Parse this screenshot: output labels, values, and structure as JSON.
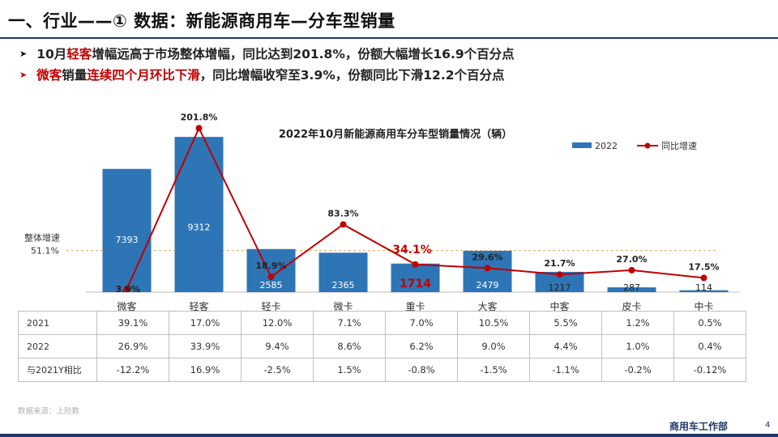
{
  "header": {
    "title": "一、行业——① 数据：新能源商用车—分车型销量"
  },
  "bullets": [
    {
      "s1": "10月",
      "s2": "轻客",
      "s3": "增幅远高于市场整体增幅，同比达到201.8%，份额大幅增长16.9个百分点"
    },
    {
      "s1": "微客",
      "s2": "销量",
      "s3": "连续四个月环比下滑",
      "s4": "，同比增幅收窄至3.9%，份额同比下滑12.2个百分点"
    }
  ],
  "colors": {
    "bar": "#2e75b6",
    "line": "#c00000",
    "ref": "#e0a860",
    "title_rule": "#1f3a66",
    "highlight": "#c00000"
  },
  "chart_data": {
    "type": "bar",
    "title": "2022年10月新能源商用车分车型销量情况（辆）",
    "categories": [
      "微客",
      "轻客",
      "轻卡",
      "微卡",
      "重卡",
      "大客",
      "中客",
      "皮卡",
      "中卡"
    ],
    "series": [
      {
        "name": "2022",
        "type": "bar",
        "values": [
          7393,
          9312,
          2585,
          2365,
          1714,
          2479,
          1217,
          287,
          114
        ]
      },
      {
        "name": "同比增速",
        "type": "line",
        "values": [
          3.9,
          201.8,
          18.9,
          83.3,
          34.1,
          29.6,
          21.7,
          27.0,
          17.5
        ],
        "labels": [
          "3.9%",
          "201.8%",
          "18.9%",
          "83.3%",
          "34.1%",
          "29.6%",
          "21.7%",
          "27.0%",
          "17.5%"
        ]
      }
    ],
    "bar_ylim": [
      0,
      10000
    ],
    "line_ylim": [
      0,
      240
    ],
    "reference_line": {
      "label": "整体增速",
      "value": 51.1,
      "value_label": "51.1%"
    },
    "highlight_category": "重卡",
    "legend": "top-right",
    "grid": false
  },
  "table": {
    "rows": [
      {
        "label": "2021",
        "values": [
          "39.1%",
          "17.0%",
          "12.0%",
          "7.1%",
          "7.0%",
          "10.5%",
          "5.5%",
          "1.2%",
          "0.5%"
        ]
      },
      {
        "label": "2022",
        "values": [
          "26.9%",
          "33.9%",
          "9.4%",
          "8.6%",
          "6.2%",
          "9.0%",
          "4.4%",
          "1.0%",
          "0.4%"
        ]
      },
      {
        "label": "与2021Y相比",
        "values": [
          "-12.2%",
          "16.9%",
          "-2.5%",
          "1.5%",
          "-0.8%",
          "-1.5%",
          "-1.1%",
          "-0.2%",
          "-0.12%"
        ]
      }
    ]
  },
  "footer": {
    "source": "数据来源：上险数",
    "dept": "商用车工作部",
    "page": "4"
  }
}
